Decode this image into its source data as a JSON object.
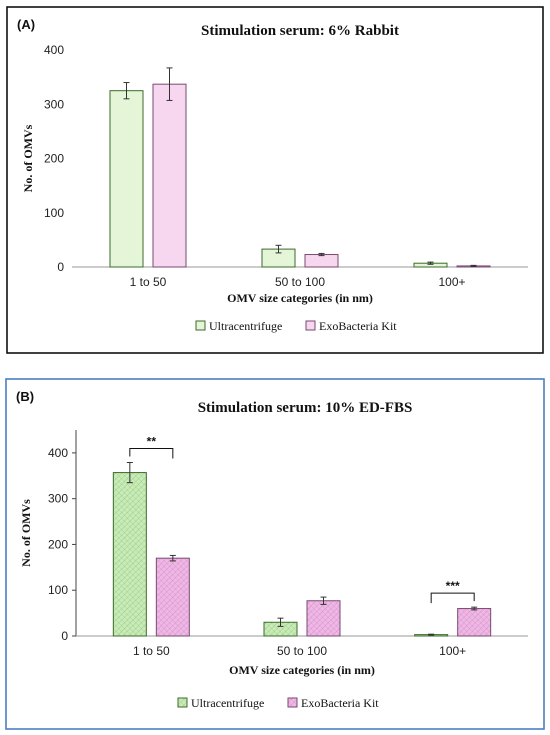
{
  "chart_data": [
    {
      "type": "bar",
      "panel_label": "(A)",
      "title": "Stimulation serum: 6% Rabbit",
      "xlabel": "OMV size categories (in nm)",
      "ylabel": "No. of OMVs",
      "ylim": [
        0,
        400
      ],
      "yticks": [
        0,
        100,
        200,
        300,
        400
      ],
      "categories": [
        "1 to 50",
        "50 to 100",
        "100+"
      ],
      "series": [
        {
          "name": "Ultracentrifuge",
          "values": [
            325,
            33,
            7
          ],
          "errors": [
            15,
            7,
            2
          ],
          "color": "#e4f5d8",
          "stroke": "#3d6b2b",
          "pattern": false
        },
        {
          "name": "ExoBacteria Kit",
          "values": [
            337,
            23,
            2
          ],
          "errors": [
            30,
            2,
            1
          ],
          "color": "#f7d7ef",
          "stroke": "#7a4a72",
          "pattern": false
        }
      ],
      "significance": [],
      "legend_position": "bottom",
      "border_color": "#111111",
      "grid": false
    },
    {
      "type": "bar",
      "panel_label": "(B)",
      "title": "Stimulation serum: 10% ED-FBS",
      "xlabel": "OMV size categories (in nm)",
      "ylabel": "No. of OMVs",
      "ylim": [
        0,
        450
      ],
      "yticks": [
        0,
        100,
        200,
        300,
        400
      ],
      "categories": [
        "1 to 50",
        "50 to 100",
        "100+"
      ],
      "series": [
        {
          "name": "Ultracentrifuge",
          "values": [
            357,
            30,
            3
          ],
          "errors": [
            22,
            9,
            1
          ],
          "color": "#c8ecb6",
          "stroke": "#3d6b2b",
          "pattern": true
        },
        {
          "name": "ExoBacteria Kit",
          "values": [
            170,
            77,
            60
          ],
          "errors": [
            6,
            8,
            3
          ],
          "color": "#f0b6e6",
          "stroke": "#7a4a72",
          "pattern": true
        }
      ],
      "significance": [
        {
          "category_index": 0,
          "label": "**"
        },
        {
          "category_index": 2,
          "label": "***"
        }
      ],
      "legend_position": "bottom",
      "border_color": "#4a7fc1",
      "grid": false
    }
  ]
}
